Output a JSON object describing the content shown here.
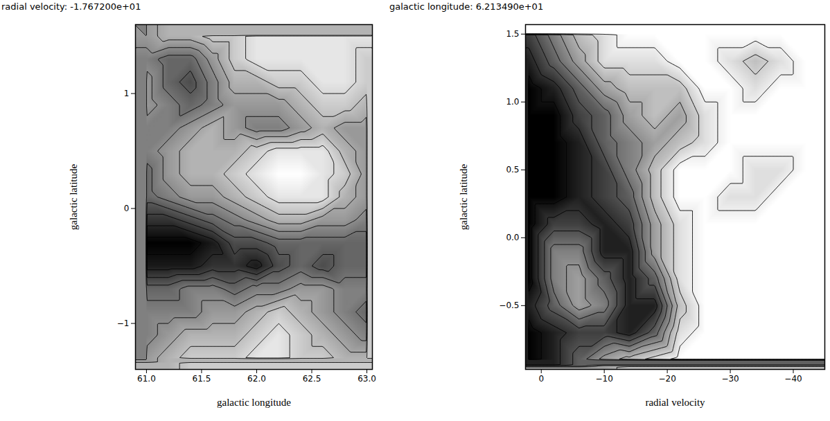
{
  "chart_data": [
    {
      "type": "heatmap",
      "title": "radial velocity: -1.767200e+01",
      "x_label": "galactic longitude",
      "y_label": "galactic latitude",
      "xlim": [
        60.9,
        63.05
      ],
      "ylim": [
        -1.4,
        1.6
      ],
      "xticks": [
        {
          "value": 61,
          "label": "61.0"
        },
        61.5,
        {
          "value": 62,
          "label": "62.0"
        },
        62.5,
        {
          "value": 63,
          "label": "63.0"
        }
      ],
      "yticks": [
        {
          "value": -1,
          "label": "−1"
        },
        0,
        1
      ],
      "contour_levels": [
        1.5,
        2.5,
        3.5,
        4.5,
        5.5,
        6.5,
        7.5,
        8.5,
        9.5
      ],
      "x": [
        61.0,
        61.2,
        61.4,
        61.6,
        61.8,
        62.0,
        62.2,
        62.4,
        62.6,
        62.8,
        63.0
      ],
      "y": [
        1.5,
        1.3,
        1.1,
        0.9,
        0.7,
        0.5,
        0.3,
        0.1,
        -0.1,
        -0.3,
        -0.5,
        -0.7,
        -0.9,
        -1.1,
        -1.3
      ],
      "cells": [
        [
          4,
          3,
          3,
          2,
          2,
          1,
          1,
          1,
          1,
          1,
          1
        ],
        [
          5,
          6,
          6,
          4,
          2,
          1,
          1,
          1,
          1,
          1,
          2
        ],
        [
          4,
          6,
          7,
          5,
          3,
          3,
          2,
          2,
          1,
          1,
          2
        ],
        [
          4,
          5,
          6,
          5,
          4,
          4,
          4,
          3,
          2,
          2,
          3
        ],
        [
          5,
          5,
          4,
          3,
          4,
          5,
          5,
          4,
          3,
          4,
          4
        ],
        [
          5,
          4,
          3,
          3,
          3,
          2,
          1,
          1,
          1,
          3,
          4
        ],
        [
          6,
          4,
          3,
          3,
          2,
          1,
          0,
          0,
          1,
          2,
          4
        ],
        [
          6,
          5,
          4,
          4,
          3,
          2,
          1,
          1,
          1,
          3,
          4
        ],
        [
          8,
          8,
          7,
          6,
          5,
          4,
          3,
          3,
          4,
          4,
          5
        ],
        [
          10,
          10,
          10,
          9,
          7,
          7,
          6,
          6,
          6,
          6,
          6
        ],
        [
          9,
          9,
          9,
          8,
          8,
          9,
          7,
          6,
          7,
          6,
          6
        ],
        [
          6,
          6,
          5,
          5,
          6,
          5,
          5,
          4,
          4,
          5,
          5
        ],
        [
          5,
          5,
          5,
          4,
          4,
          3,
          2,
          3,
          4,
          5,
          6
        ],
        [
          5,
          4,
          3,
          3,
          3,
          2,
          1,
          2,
          3,
          4,
          5
        ],
        [
          4,
          3,
          2,
          2,
          2,
          1,
          1,
          2,
          2,
          3,
          3
        ]
      ]
    },
    {
      "type": "heatmap",
      "title": "galactic longitude: 6.213490e+01",
      "x_label": "radial velocity",
      "y_label": "galactic latitude",
      "xlim": [
        2.5,
        -45
      ],
      "ylim": [
        -0.97,
        1.57
      ],
      "xticks": [
        0,
        {
          "value": -10,
          "label": "−10"
        },
        {
          "value": -20,
          "label": "−20"
        },
        {
          "value": -30,
          "label": "−30"
        },
        {
          "value": -40,
          "label": "−40"
        }
      ],
      "yticks": [
        {
          "value": -0.5,
          "label": "−0.5"
        },
        {
          "value": 0,
          "label": "0.0"
        },
        0.5,
        {
          "value": 1,
          "label": "1.0"
        },
        1.5
      ],
      "contour_levels": [
        1.5,
        2.5,
        3.5,
        4.5,
        5.5,
        6.5,
        7.5,
        8.5
      ],
      "x": [
        2,
        -2,
        -6,
        -10,
        -14,
        -18,
        -22,
        -26,
        -30,
        -34,
        -38,
        -42
      ],
      "y": [
        1.5,
        1.3,
        1.1,
        0.9,
        0.7,
        0.5,
        0.3,
        0.1,
        -0.1,
        -0.3,
        -0.5,
        -0.7,
        -0.9
      ],
      "cells": [
        [
          7,
          5,
          3,
          2,
          1,
          1,
          1,
          1,
          1,
          1,
          1,
          1
        ],
        [
          8,
          6,
          4,
          2,
          2,
          2,
          1,
          1,
          2,
          3,
          2,
          1
        ],
        [
          9,
          8,
          6,
          4,
          3,
          3,
          3,
          1,
          1,
          2,
          1,
          1
        ],
        [
          9,
          9,
          7,
          6,
          4,
          3,
          4,
          2,
          1,
          1,
          1,
          1
        ],
        [
          9,
          9,
          8,
          6,
          5,
          4,
          3,
          2,
          1,
          1,
          1,
          1
        ],
        [
          9,
          9,
          8,
          7,
          5,
          3,
          1,
          1,
          1,
          2,
          2,
          1
        ],
        [
          9,
          9,
          8,
          7,
          6,
          3,
          1,
          1,
          2,
          2,
          1,
          1
        ],
        [
          9,
          7,
          7,
          8,
          7,
          4,
          2,
          1,
          1,
          1,
          1,
          1
        ],
        [
          9,
          5,
          5,
          8,
          8,
          4,
          2,
          1,
          1,
          1,
          1,
          1
        ],
        [
          9,
          5,
          4,
          6,
          8,
          6,
          2,
          1,
          1,
          1,
          1,
          1
        ],
        [
          8,
          6,
          4,
          5,
          8,
          8,
          3,
          1,
          1,
          1,
          1,
          1
        ],
        [
          9,
          8,
          7,
          7,
          8,
          6,
          2,
          1,
          1,
          1,
          1,
          1
        ],
        [
          9,
          8,
          6,
          4,
          3,
          2,
          1,
          1,
          1,
          1,
          1,
          1
        ]
      ]
    }
  ]
}
